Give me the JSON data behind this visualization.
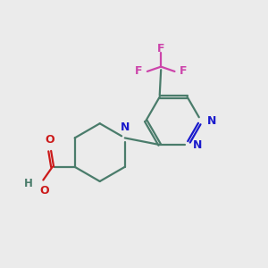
{
  "background_color": "#ebebeb",
  "bond_color": "#4a7c6b",
  "nitrogen_color": "#1a1acc",
  "oxygen_color": "#cc1a1a",
  "fluorine_color": "#cc44aa",
  "line_width": 1.6,
  "figsize": [
    3.0,
    3.0
  ],
  "dpi": 100,
  "xlim": [
    0,
    10
  ],
  "ylim": [
    0,
    10
  ]
}
